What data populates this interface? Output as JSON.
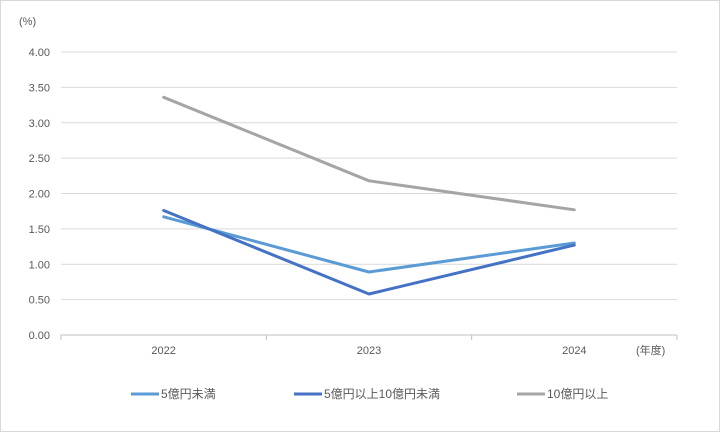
{
  "chart_data": {
    "type": "line",
    "y_unit_label": "(%)",
    "x_unit_label": "(年度)",
    "categories": [
      "2022",
      "2023",
      "2024"
    ],
    "ylim": [
      0,
      4
    ],
    "yticks": [
      "0.00",
      "0.50",
      "1.00",
      "1.50",
      "2.00",
      "2.50",
      "3.00",
      "3.50",
      "4.00"
    ],
    "grid": true,
    "legend_position": "bottom",
    "series": [
      {
        "name": "5億円未満",
        "values": [
          1.67,
          0.89,
          1.3
        ],
        "color": "#5b9bd5"
      },
      {
        "name": "5億円以上10億円未満",
        "values": [
          1.76,
          0.58,
          1.27
        ],
        "color": "#4472c4"
      },
      {
        "name": "10億円以上",
        "values": [
          3.36,
          2.18,
          1.77
        ],
        "color": "#a5a5a5"
      }
    ]
  }
}
